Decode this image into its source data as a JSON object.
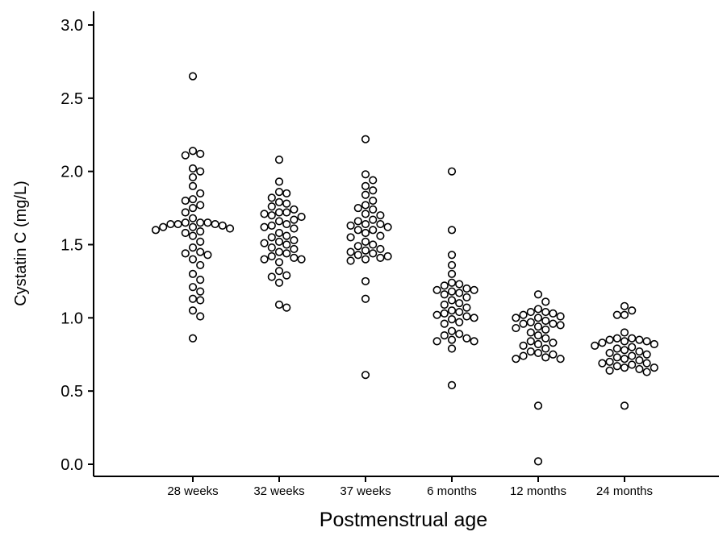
{
  "chart_data": {
    "type": "scatter",
    "subtype": "dot-plot",
    "title": "",
    "xlabel": "Postmenstrual age",
    "ylabel": "Cystatin C (mg/L)",
    "ylim": [
      0,
      3.0
    ],
    "yticks": [
      "0.0",
      "0.5",
      "1.0",
      "1.5",
      "2.0",
      "2.5",
      "3.0"
    ],
    "grid": false,
    "legend": "none",
    "categories": [
      "28 weeks",
      "32 weeks",
      "37 weeks",
      "6 months",
      "12 months",
      "24 months"
    ],
    "groups": [
      {
        "category": "28 weeks",
        "values": [
          2.65,
          2.14,
          2.12,
          2.11,
          2.02,
          2.0,
          1.96,
          1.9,
          1.85,
          1.81,
          1.8,
          1.77,
          1.75,
          1.72,
          1.68,
          1.65,
          1.65,
          1.65,
          1.64,
          1.64,
          1.64,
          1.63,
          1.62,
          1.62,
          1.61,
          1.6,
          1.59,
          1.58,
          1.56,
          1.52,
          1.48,
          1.45,
          1.44,
          1.43,
          1.4,
          1.36,
          1.3,
          1.26,
          1.21,
          1.18,
          1.13,
          1.12,
          1.05,
          1.01,
          0.86
        ]
      },
      {
        "category": "32 weeks",
        "values": [
          2.08,
          1.93,
          1.86,
          1.85,
          1.82,
          1.79,
          1.78,
          1.76,
          1.74,
          1.72,
          1.72,
          1.71,
          1.7,
          1.69,
          1.67,
          1.66,
          1.64,
          1.63,
          1.62,
          1.61,
          1.58,
          1.56,
          1.55,
          1.53,
          1.52,
          1.51,
          1.5,
          1.48,
          1.47,
          1.45,
          1.44,
          1.42,
          1.41,
          1.4,
          1.4,
          1.38,
          1.32,
          1.29,
          1.28,
          1.24,
          1.09,
          1.07
        ]
      },
      {
        "category": "37 weeks",
        "values": [
          2.22,
          1.98,
          1.94,
          1.9,
          1.87,
          1.84,
          1.8,
          1.77,
          1.75,
          1.74,
          1.71,
          1.7,
          1.67,
          1.66,
          1.64,
          1.64,
          1.63,
          1.62,
          1.6,
          1.6,
          1.58,
          1.56,
          1.55,
          1.52,
          1.5,
          1.49,
          1.47,
          1.46,
          1.45,
          1.44,
          1.43,
          1.42,
          1.41,
          1.4,
          1.39,
          1.25,
          1.13,
          0.61
        ]
      },
      {
        "category": "6 months",
        "values": [
          2.0,
          1.6,
          1.43,
          1.36,
          1.3,
          1.24,
          1.23,
          1.22,
          1.2,
          1.19,
          1.19,
          1.18,
          1.17,
          1.16,
          1.14,
          1.12,
          1.1,
          1.09,
          1.07,
          1.05,
          1.04,
          1.03,
          1.02,
          1.01,
          1.0,
          0.99,
          0.97,
          0.96,
          0.91,
          0.89,
          0.88,
          0.86,
          0.85,
          0.84,
          0.84,
          0.79,
          0.54
        ]
      },
      {
        "category": "12 months",
        "values": [
          1.16,
          1.11,
          1.06,
          1.04,
          1.04,
          1.03,
          1.02,
          1.01,
          1.0,
          1.0,
          0.98,
          0.97,
          0.96,
          0.96,
          0.95,
          0.94,
          0.93,
          0.92,
          0.9,
          0.88,
          0.86,
          0.84,
          0.83,
          0.82,
          0.81,
          0.79,
          0.77,
          0.76,
          0.75,
          0.74,
          0.73,
          0.72,
          0.72,
          0.4,
          0.02
        ]
      },
      {
        "category": "24 months",
        "values": [
          1.08,
          1.05,
          1.02,
          1.02,
          0.9,
          0.86,
          0.86,
          0.85,
          0.85,
          0.84,
          0.84,
          0.83,
          0.82,
          0.81,
          0.8,
          0.79,
          0.78,
          0.77,
          0.76,
          0.75,
          0.74,
          0.73,
          0.72,
          0.71,
          0.7,
          0.69,
          0.69,
          0.68,
          0.67,
          0.66,
          0.66,
          0.65,
          0.64,
          0.63,
          0.4
        ]
      }
    ]
  }
}
